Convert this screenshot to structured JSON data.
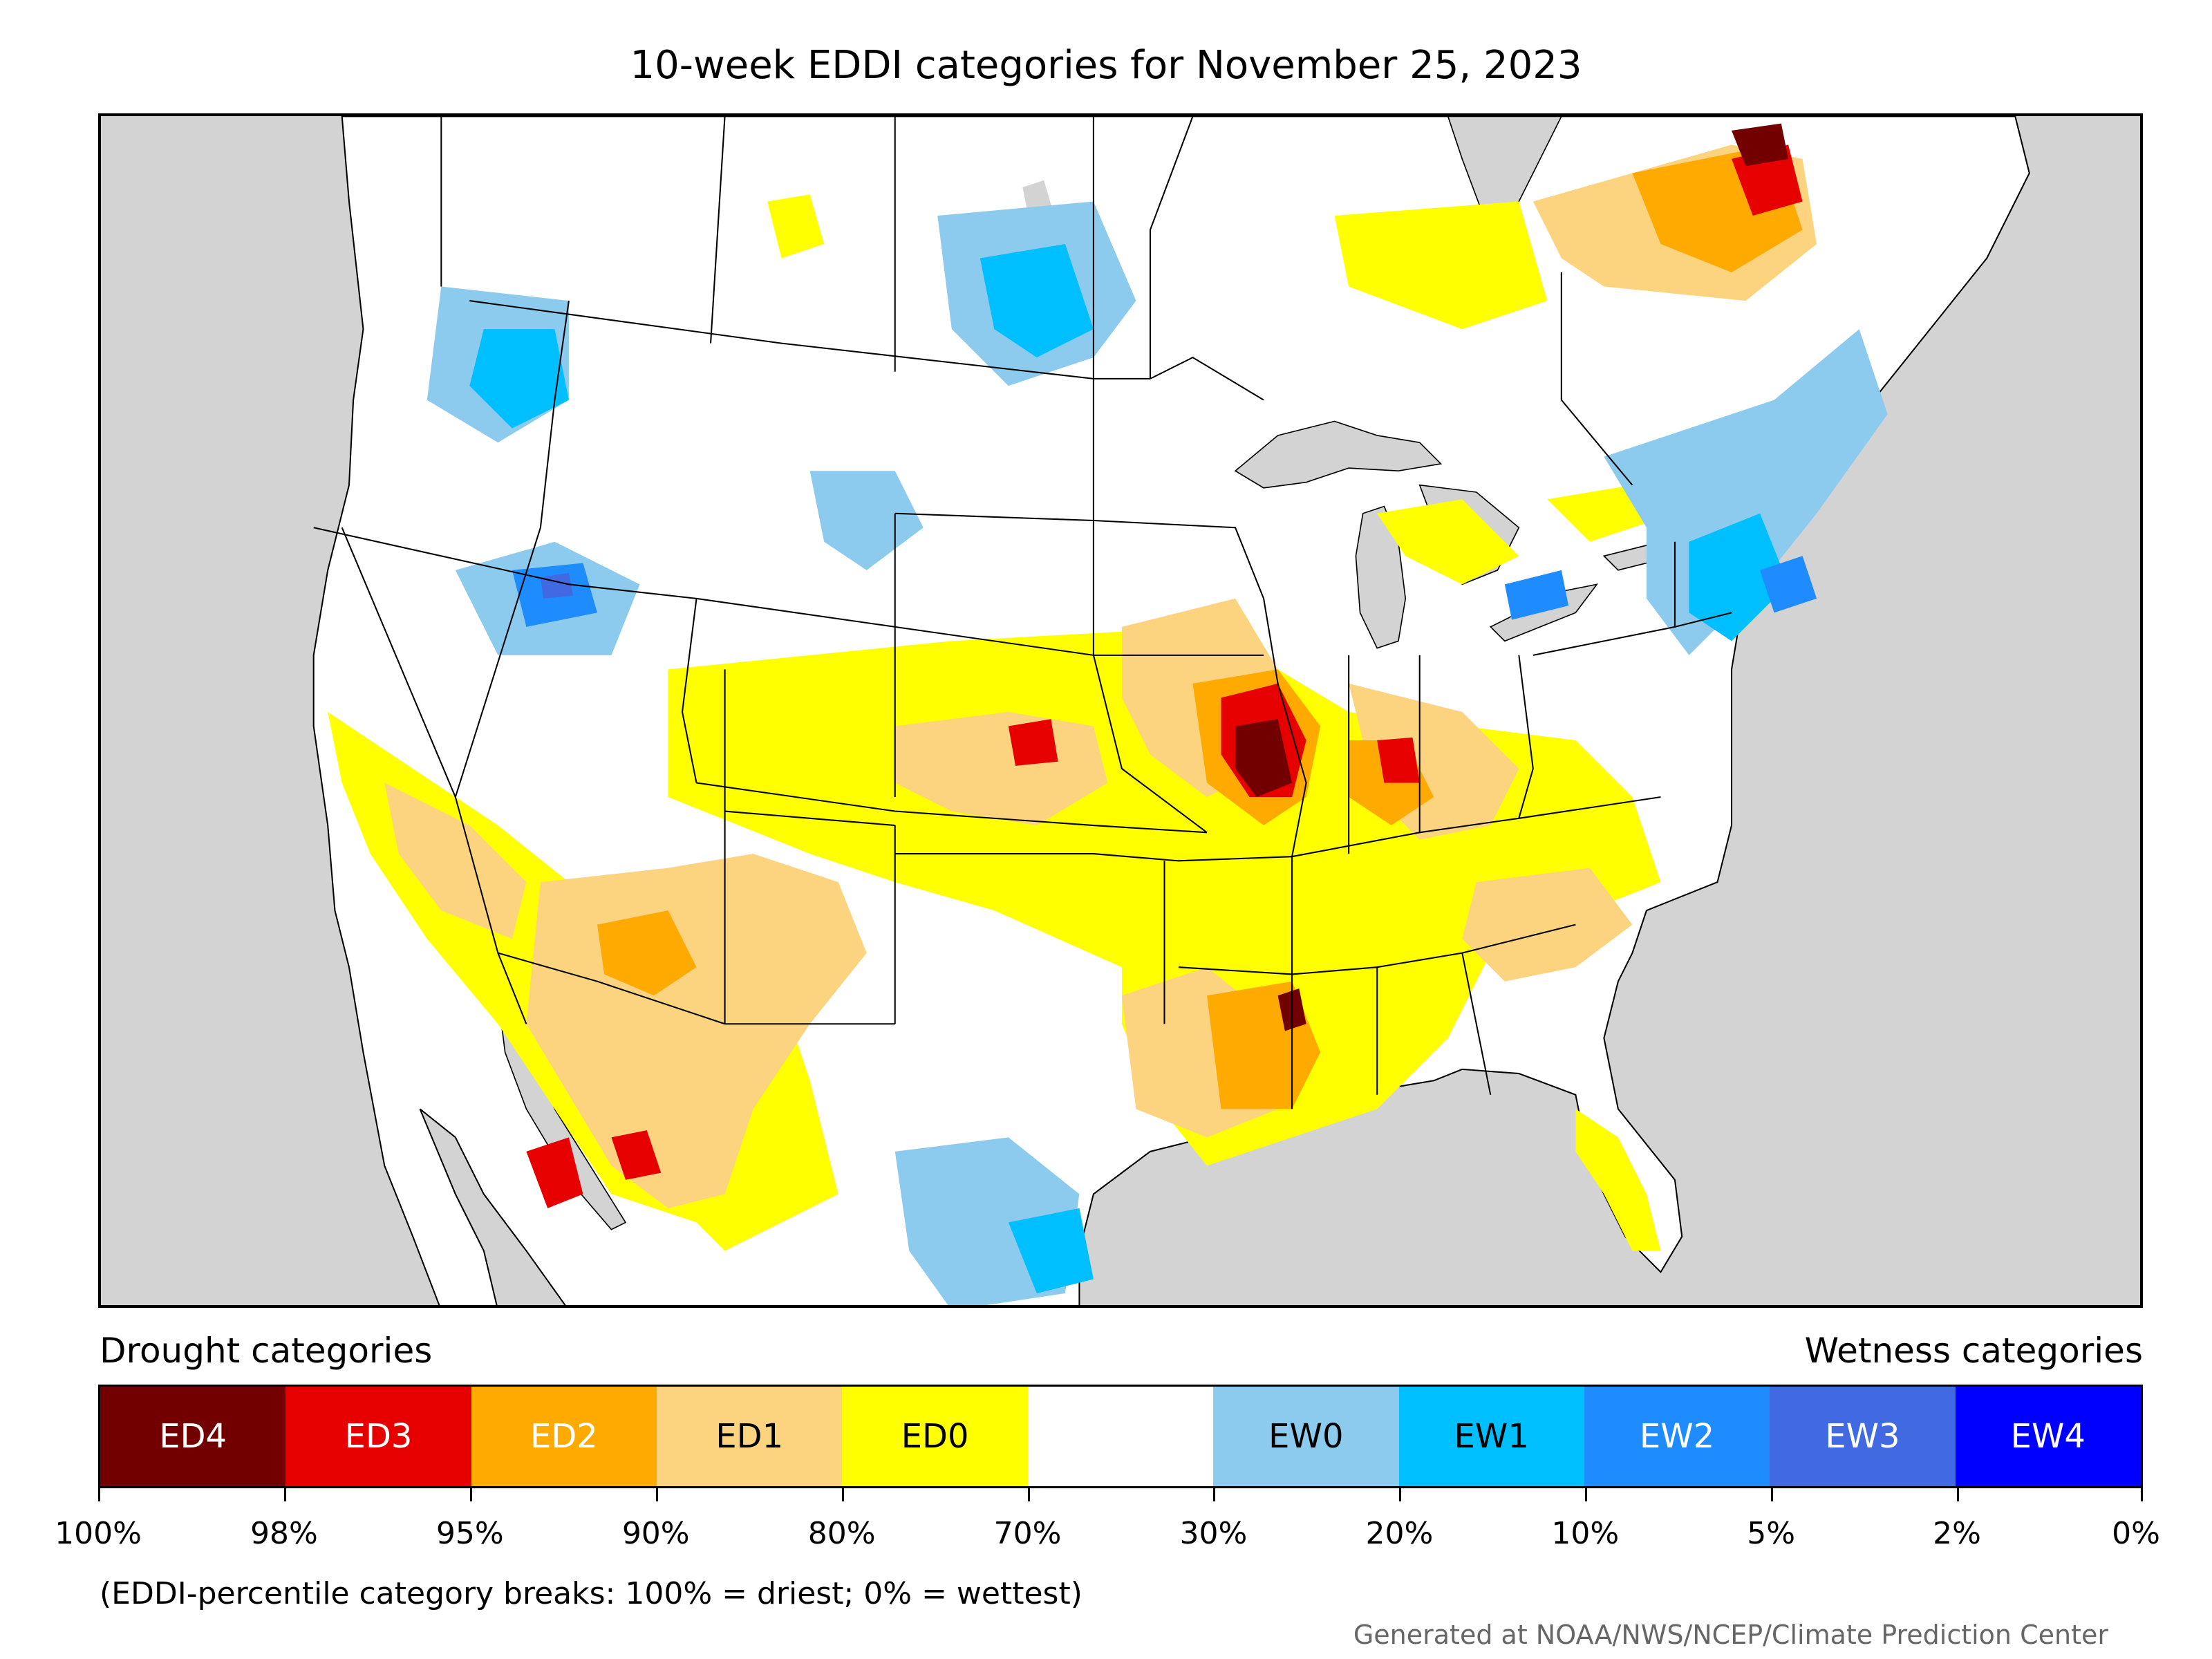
{
  "title": "10-week EDDI categories for November 25, 2023",
  "legend": {
    "drought_heading": "Drought categories",
    "wetness_heading": "Wetness categories",
    "categories": [
      {
        "label": "ED4",
        "color": "#730000",
        "text_color": "#ffffff"
      },
      {
        "label": "ED3",
        "color": "#e60000",
        "text_color": "#ffffff"
      },
      {
        "label": "ED2",
        "color": "#ffaa00",
        "text_color": "#ffffff"
      },
      {
        "label": "ED1",
        "color": "#fcd37f",
        "text_color": "#000000"
      },
      {
        "label": "ED0",
        "color": "#ffff00",
        "text_color": "#000000"
      },
      {
        "label": "",
        "color": "#ffffff",
        "text_color": "#000000"
      },
      {
        "label": "EW0",
        "color": "#8ccbed",
        "text_color": "#000000"
      },
      {
        "label": "EW1",
        "color": "#00bfff",
        "text_color": "#000000"
      },
      {
        "label": "EW2",
        "color": "#1e8cff",
        "text_color": "#ffffff"
      },
      {
        "label": "EW3",
        "color": "#4169e1",
        "text_color": "#ffffff"
      },
      {
        "label": "EW4",
        "color": "#0000ff",
        "text_color": "#ffffff"
      }
    ],
    "breaks": [
      "100%",
      "98%",
      "95%",
      "90%",
      "80%",
      "70%",
      "30%",
      "20%",
      "10%",
      "5%",
      "2%",
      "0%"
    ]
  },
  "note": "(EDDI-percentile category breaks: 100% = driest; 0% = wettest)",
  "credit": "Generated at NOAA/NWS/NCEP/Climate Prediction Center",
  "map": {
    "background_color": "#d3d3d3",
    "land_color": "#ffffff",
    "border_color": "#000000"
  }
}
